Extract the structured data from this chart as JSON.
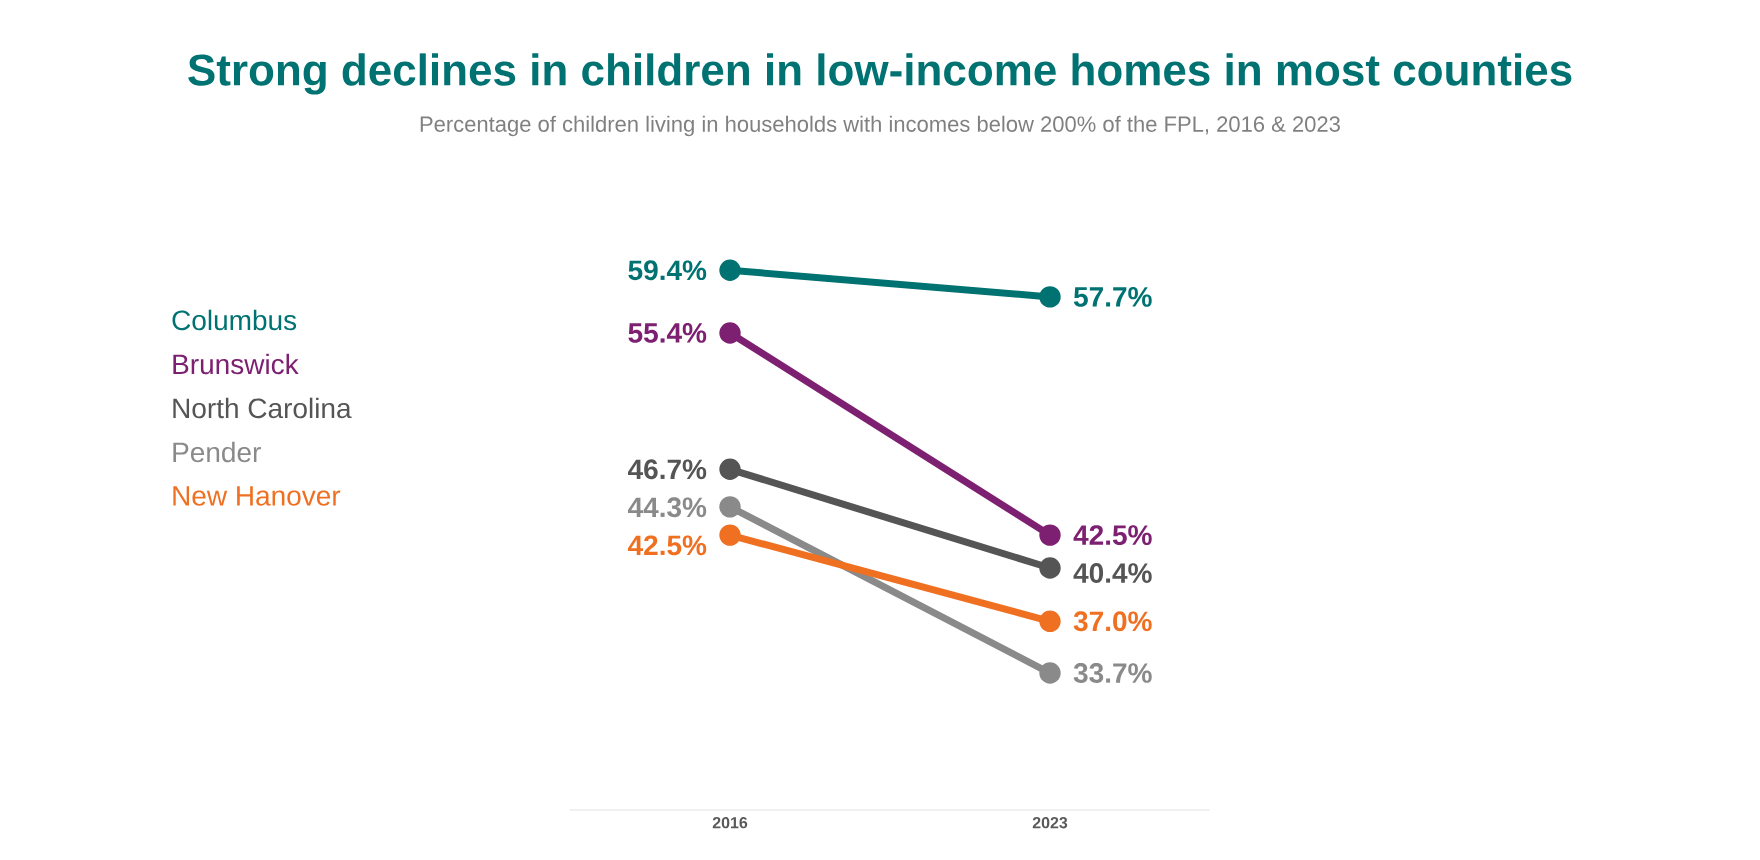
{
  "chart_data": {
    "type": "line",
    "title": "Strong declines in children in low-income homes in most counties",
    "subtitle": "Percentage of children living in households with incomes below 200% of the FPL, 2016 & 2023",
    "categories": [
      "2016",
      "2023"
    ],
    "marker": "circle",
    "legend": "left",
    "series": [
      {
        "name": "Columbus",
        "color": "#007272",
        "values": [
          59.4,
          57.7
        ],
        "value_labels": [
          "59.4%",
          "57.7%"
        ]
      },
      {
        "name": "Brunswick",
        "color": "#7e2072",
        "values": [
          55.4,
          42.5
        ],
        "value_labels": [
          "55.4%",
          "42.5%"
        ]
      },
      {
        "name": "North Carolina",
        "color": "#555555",
        "values": [
          46.7,
          40.4
        ],
        "value_labels": [
          "46.7%",
          "40.4%"
        ]
      },
      {
        "name": "Pender",
        "color": "#8a8a8a",
        "values": [
          44.3,
          33.7
        ],
        "value_labels": [
          "44.3%",
          "33.7%"
        ]
      },
      {
        "name": "New Hanover",
        "color": "#f07022",
        "values": [
          42.5,
          37.0
        ],
        "value_labels": [
          "42.5%",
          "37.0%"
        ]
      }
    ]
  }
}
